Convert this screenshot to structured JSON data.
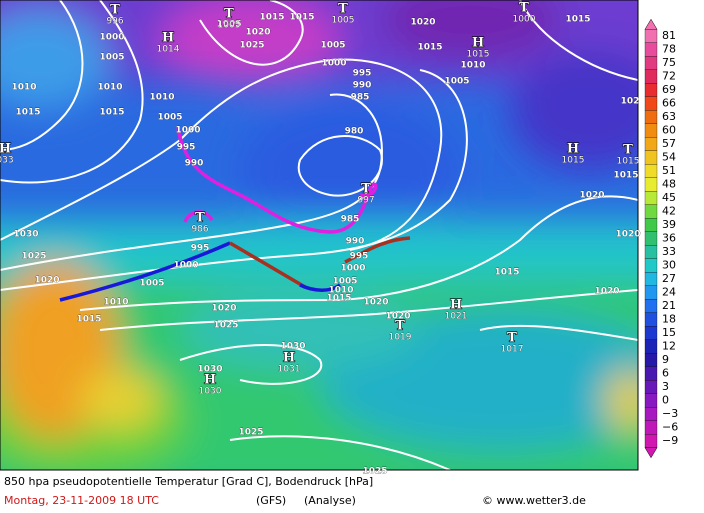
{
  "map": {
    "isobar_labels": [
      "1000",
      "1005",
      "1010",
      "1015",
      "1010",
      "1005",
      "1000",
      "995",
      "990",
      "1005",
      "1015",
      "1015",
      "1020",
      "1025",
      "1005",
      "1000",
      "995",
      "990",
      "985",
      "980",
      "1020",
      "1015",
      "1010",
      "1005",
      "1015",
      "1010",
      "1015",
      "1030",
      "1025",
      "1020",
      "1010",
      "1005",
      "1000",
      "995",
      "985",
      "990",
      "995",
      "1000",
      "1005",
      "1010",
      "1015",
      "1020",
      "1020",
      "1015",
      "1020",
      "1020",
      "1020",
      "1015",
      "1020",
      "1025",
      "1030",
      "1030",
      "1025",
      "1025",
      "102",
      "1015"
    ],
    "pressure_centers": [
      {
        "kind": "T",
        "value": "996"
      },
      {
        "kind": "H",
        "value": "1014"
      },
      {
        "kind": "T",
        "value": "1005"
      },
      {
        "kind": "T",
        "value": "1005"
      },
      {
        "kind": "T",
        "value": "1000"
      },
      {
        "kind": "H",
        "value": "1015"
      },
      {
        "kind": "T",
        "value": "997"
      },
      {
        "kind": "T",
        "value": "986"
      },
      {
        "kind": "H",
        "value": "1015"
      },
      {
        "kind": "T",
        "value": "1015"
      },
      {
        "kind": "H",
        "value": "1021"
      },
      {
        "kind": "T",
        "value": "1019"
      },
      {
        "kind": "T",
        "value": "1017"
      },
      {
        "kind": "H",
        "value": "1031"
      },
      {
        "kind": "H",
        "value": "1030"
      },
      {
        "kind": "H",
        "value": "033"
      }
    ]
  },
  "legend": {
    "labels": [
      "81",
      "78",
      "75",
      "72",
      "69",
      "66",
      "63",
      "60",
      "57",
      "54",
      "51",
      "48",
      "45",
      "42",
      "39",
      "36",
      "33",
      "30",
      "27",
      "24",
      "21",
      "18",
      "15",
      "12",
      "9",
      "6",
      "3",
      "0",
      "−3",
      "−6",
      "−9"
    ],
    "colors": [
      "#f070b0",
      "#e84c9c",
      "#e03a80",
      "#e02c5c",
      "#e82c30",
      "#f04818",
      "#f06c10",
      "#f08c10",
      "#f0a818",
      "#f0c420",
      "#f0dc28",
      "#e8ec30",
      "#b8e838",
      "#70d840",
      "#40c848",
      "#30c070",
      "#28c0a0",
      "#20c8c8",
      "#20b8e0",
      "#2098f0",
      "#2070f0",
      "#2050e0",
      "#1c38d0",
      "#1c24b8",
      "#2818a8",
      "#4818b0",
      "#6818b8",
      "#8818c0",
      "#a818c0",
      "#c018b8",
      "#d018b0"
    ]
  },
  "caption": {
    "title": "850 hpa pseudopotentielle Temperatur [Grad C], Bodendruck [hPa]",
    "date": "Montag, 23-11-2009  18 UTC",
    "model": "(GFS)",
    "run": "(Analyse)",
    "credit": "© www.wetter3.de"
  }
}
